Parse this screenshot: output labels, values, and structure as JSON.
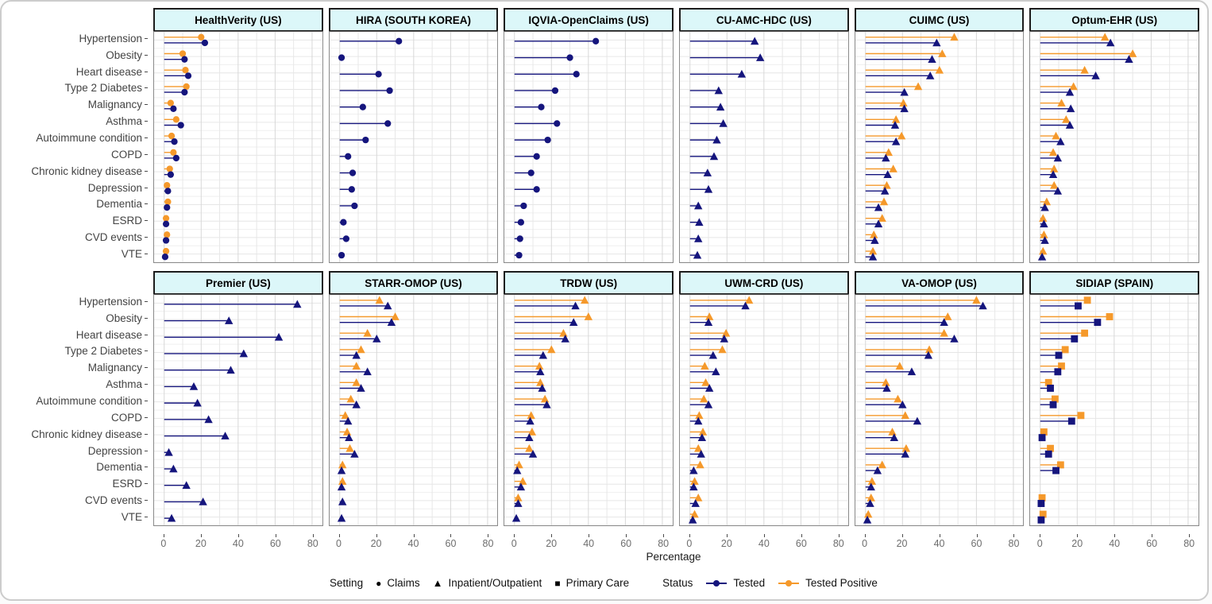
{
  "chart_data": {
    "type": "lollipop-facets",
    "xlabel": "Percentage",
    "x_ticks": [
      0,
      20,
      40,
      60,
      80
    ],
    "x_minor_ticks": [
      10,
      30,
      50,
      70
    ],
    "xlim": [
      0,
      80
    ],
    "grid": true,
    "categories": [
      "Hypertension",
      "Obesity",
      "Heart disease",
      "Type 2 Diabetes",
      "Malignancy",
      "Asthma",
      "Autoimmune condition",
      "COPD",
      "Chronic kidney disease",
      "Depression",
      "Dementia",
      "ESRD",
      "CVD events",
      "VTE"
    ],
    "colors": {
      "tested": "#15157d",
      "tested_positive": "#f5992b",
      "facet_header_bg": "#dcf7f9",
      "facet_header_border": "#1c1c1c"
    },
    "facets": [
      {
        "name": "HealthVerity (US)",
        "setting": "Claims",
        "shape": "circle",
        "tested": [
          22,
          11,
          13,
          11,
          5,
          9,
          5.5,
          6.5,
          3.5,
          2,
          1.5,
          1,
          1,
          0.5
        ],
        "positive": [
          20,
          10,
          11.5,
          12,
          3.5,
          6.5,
          4,
          5,
          3,
          1.5,
          2,
          1,
          1.5,
          1
        ]
      },
      {
        "name": "HIRA (SOUTH KOREA)",
        "setting": "Claims",
        "shape": "circle",
        "tested": [
          32,
          1,
          21,
          27,
          12.5,
          26,
          14,
          4.5,
          7,
          6.5,
          8,
          2,
          3.5,
          1
        ],
        "positive": null
      },
      {
        "name": "IQVIA-OpenClaims (US)",
        "setting": "Claims",
        "shape": "circle",
        "tested": [
          44,
          30,
          33.5,
          22,
          14.5,
          23,
          18,
          12,
          9,
          12,
          5,
          3.5,
          3,
          2.5
        ],
        "positive": null
      },
      {
        "name": "CU-AMC-HDC (US)",
        "setting": "Inpatient/Outpatient",
        "shape": "triangle",
        "tested": [
          35,
          38,
          28,
          15.5,
          16.5,
          18,
          14.5,
          13,
          9.5,
          10,
          4.5,
          5,
          4.5,
          4
        ],
        "positive": null
      },
      {
        "name": "CUIMC (US)",
        "setting": "Inpatient/Outpatient",
        "shape": "triangle",
        "tested": [
          38.5,
          36,
          35,
          21,
          21,
          16,
          16.5,
          11,
          12,
          10.5,
          7,
          7,
          5,
          4
        ],
        "positive": [
          48,
          41.5,
          40,
          28.5,
          20.5,
          16.5,
          19.5,
          12.5,
          15,
          11.5,
          10,
          9,
          4.5,
          4
        ]
      },
      {
        "name": "Optum-EHR (US)",
        "setting": "Inpatient/Outpatient",
        "shape": "triangle",
        "tested": [
          38,
          48,
          30,
          16,
          16.5,
          16,
          11,
          9.5,
          7,
          9.5,
          2.5,
          2,
          2.5,
          1
        ],
        "positive": [
          35,
          50,
          24,
          18,
          11.5,
          14,
          8.5,
          7,
          7.5,
          7.5,
          3.5,
          1.5,
          2,
          1.5
        ]
      },
      {
        "name": "Premier (US)",
        "setting": "Inpatient/Outpatient",
        "shape": "triangle",
        "tested": [
          72,
          35,
          62,
          43,
          36,
          16,
          18,
          24,
          33,
          2.5,
          5,
          12,
          21,
          4
        ],
        "positive": null
      },
      {
        "name": "STARR-OMOP (US)",
        "setting": "Inpatient/Outpatient",
        "shape": "triangle",
        "tested": [
          26,
          28,
          20,
          9,
          15,
          11.5,
          9,
          4.5,
          5,
          8,
          1,
          1,
          1.5,
          1
        ],
        "positive": [
          21.5,
          30,
          15,
          11.5,
          9,
          9,
          6,
          3,
          4,
          5.5,
          1.5,
          1.5,
          null,
          null
        ]
      },
      {
        "name": "TRDW (US)",
        "setting": "Inpatient/Outpatient",
        "shape": "triangle",
        "tested": [
          33,
          32,
          27.5,
          15.5,
          14,
          15,
          17.5,
          8.5,
          8,
          10,
          1.5,
          3.5,
          2,
          1
        ],
        "positive": [
          38,
          40,
          26.5,
          20,
          13.5,
          14,
          16.5,
          9,
          9.5,
          8,
          2.5,
          4.5,
          2,
          null
        ]
      },
      {
        "name": "UWM-CRD (US)",
        "setting": "Inpatient/Outpatient",
        "shape": "triangle",
        "tested": [
          30,
          10,
          18.5,
          12.5,
          14,
          10.5,
          10,
          4.5,
          6.5,
          6,
          2,
          2,
          3,
          1.5
        ],
        "positive": [
          32,
          10.5,
          19.5,
          17.5,
          8,
          8.5,
          7.5,
          5,
          7,
          4.5,
          5.5,
          2.5,
          4.5,
          2.5
        ]
      },
      {
        "name": "VA-OMOP (US)",
        "setting": "Inpatient/Outpatient",
        "shape": "triangle",
        "tested": [
          63.5,
          42.5,
          48,
          34,
          25,
          11.5,
          20,
          28,
          15.5,
          21.5,
          6.5,
          3,
          2.5,
          1
        ],
        "positive": [
          60,
          44.5,
          42.5,
          34.5,
          18.5,
          11,
          17.5,
          21.5,
          14.5,
          22,
          9,
          3.5,
          3,
          1.5
        ]
      },
      {
        "name": "SIDIAP (SPAIN)",
        "setting": "Primary Care",
        "shape": "square",
        "tested": [
          20.5,
          31,
          18.5,
          10,
          9.5,
          5.5,
          7,
          17,
          1,
          4.5,
          8.5,
          null,
          0.5,
          0.5
        ],
        "positive": [
          25.5,
          37.5,
          24,
          13.5,
          11.5,
          4.5,
          8,
          22,
          2,
          5.5,
          11,
          null,
          1,
          1.5
        ]
      }
    ],
    "legend": {
      "setting_label": "Setting",
      "setting_items": [
        {
          "label": "Claims",
          "shape": "circle"
        },
        {
          "label": "Inpatient/Outpatient",
          "shape": "triangle"
        },
        {
          "label": "Primary Care",
          "shape": "square"
        }
      ],
      "status_label": "Status",
      "status_items": [
        {
          "label": "Tested",
          "color": "#15157d"
        },
        {
          "label": "Tested Positive",
          "color": "#f5992b"
        }
      ]
    }
  }
}
